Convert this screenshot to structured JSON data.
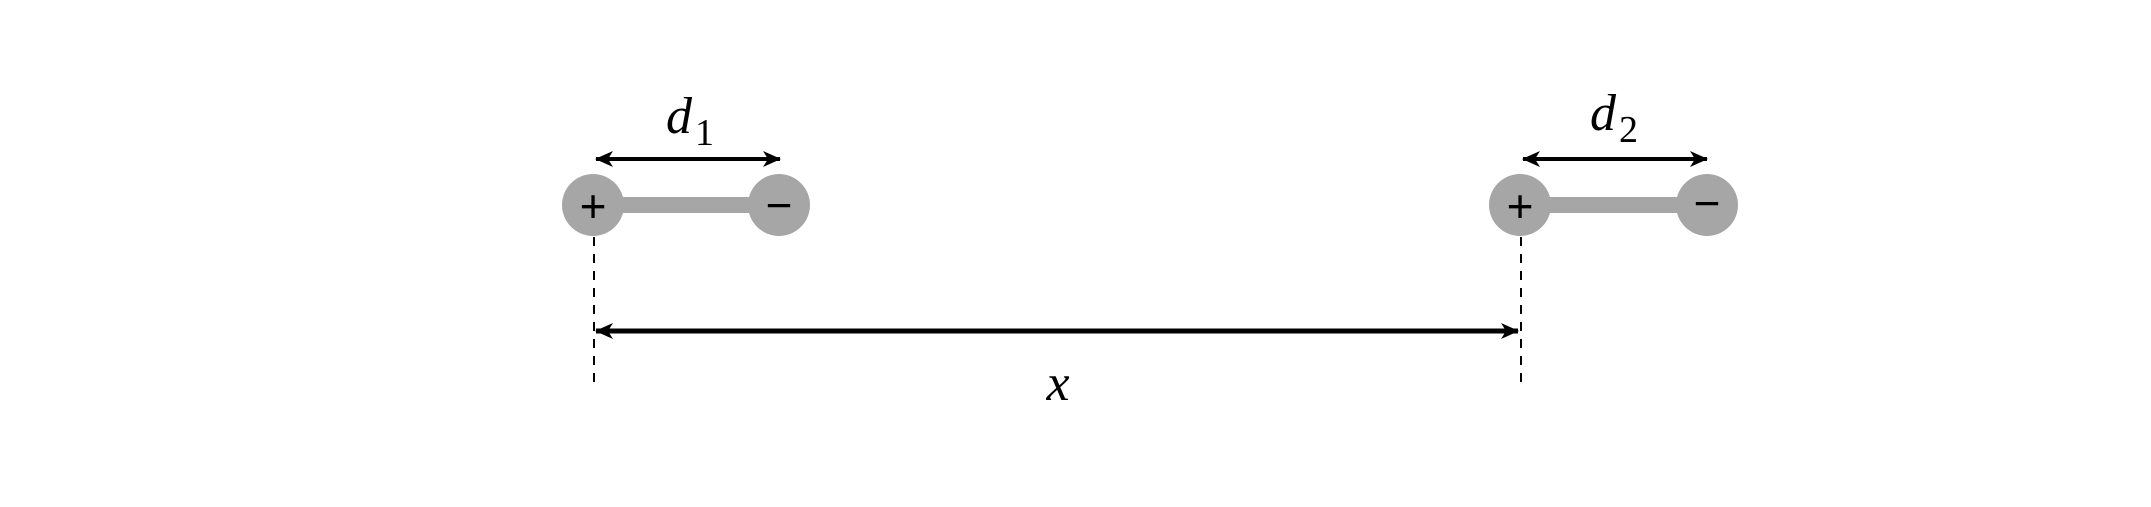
{
  "dipole_1": {
    "positive_label": "+",
    "negative_label": "−",
    "length_label": {
      "variable": "d",
      "subscript": "1"
    }
  },
  "dipole_2": {
    "positive_label": "+",
    "negative_label": "−",
    "length_label": {
      "variable": "d",
      "subscript": "2"
    }
  },
  "separation_label": "x",
  "colors": {
    "charge_fill": "#a6a6a6",
    "rod": "#a6a6a6",
    "arrow": "#000000",
    "guide_line": "#000000"
  }
}
